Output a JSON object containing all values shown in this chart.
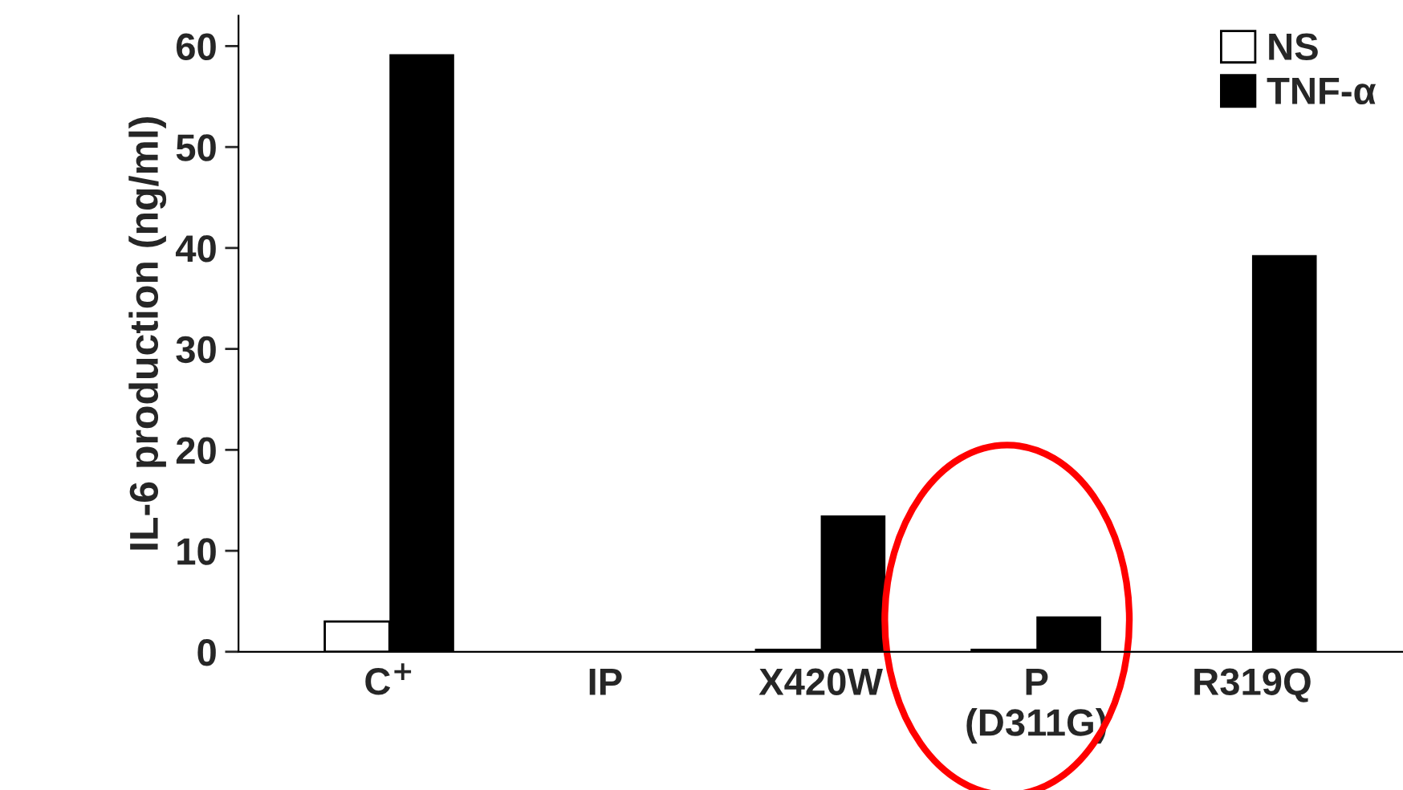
{
  "chart_data": {
    "type": "bar",
    "ylabel": "IL-6 production (ng/ml)",
    "categories": [
      "C$^{+}$",
      "IP",
      "X420W",
      "P\n(D311G)",
      "R319Q"
    ],
    "series": [
      {
        "name": "NS",
        "color": "#ffffff",
        "values": [
          3.0,
          null,
          0.2,
          0.2,
          null
        ]
      },
      {
        "name": "TNF-α",
        "color": "#000000",
        "values": [
          59.2,
          null,
          13.5,
          3.5,
          39.3
        ]
      }
    ],
    "ylim": [
      0,
      63
    ],
    "yticks": [
      0,
      10,
      20,
      30,
      40,
      50,
      60
    ],
    "grid": false,
    "legend": "top right"
  }
}
